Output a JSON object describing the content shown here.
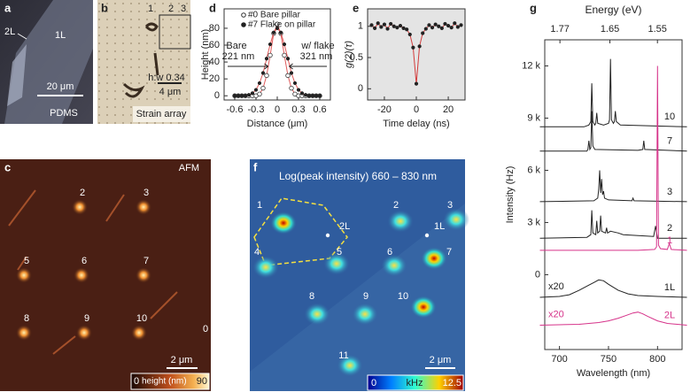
{
  "panels": {
    "a": {
      "label": "a",
      "flake_2l": "2L",
      "flake_1l": "1L",
      "scale": "20 μm",
      "substrate": "PDMS"
    },
    "b": {
      "label": "b",
      "pillars": [
        "1",
        "2",
        "3"
      ],
      "ratio": "h:w 0.34",
      "scale": "4 μm",
      "caption": "Strain array"
    },
    "c": {
      "label": "c",
      "tag": "AFM",
      "sites": [
        "2",
        "3",
        "5",
        "6",
        "7",
        "8",
        "9",
        "10",
        "0"
      ],
      "scale": "2 μm",
      "colorbar": [
        "0",
        "height (nm)",
        "90"
      ]
    },
    "f": {
      "label": "f",
      "title": "Log(peak intensity) 660 – 830 nm",
      "sites": [
        "1",
        "2",
        "3",
        "4",
        "5",
        "6",
        "7",
        "8",
        "9",
        "10",
        "11"
      ],
      "layers": [
        "2L",
        "1L"
      ],
      "scale": "2 μm",
      "colorbar": [
        "0",
        "kHz",
        "12.5"
      ]
    }
  },
  "chart_data": [
    {
      "type": "scatter",
      "label": "d",
      "xlabel": "Distance (μm)",
      "ylabel": "Height (nm)",
      "xlim": [
        -0.75,
        0.75
      ],
      "ylim": [
        -5,
        103
      ],
      "xticks": [
        -0.6,
        -0.3,
        0,
        0.3,
        0.6
      ],
      "yticks": [
        0,
        20,
        40,
        60,
        80
      ],
      "legend": "upper center",
      "annotations": [
        "Bare",
        "221 nm",
        "w/ flake",
        "321 nm"
      ],
      "x": [
        -0.6,
        -0.55,
        -0.5,
        -0.45,
        -0.4,
        -0.35,
        -0.3,
        -0.25,
        -0.2,
        -0.15,
        -0.1,
        -0.05,
        0,
        0.05,
        0.1,
        0.15,
        0.2,
        0.25,
        0.3,
        0.35,
        0.4,
        0.45,
        0.5,
        0.55,
        0.6
      ],
      "series": [
        {
          "name": "#0 Bare pillar",
          "marker": "open",
          "color": "#333333",
          "line_color": "#e05a5a",
          "values": [
            0,
            0,
            0,
            0,
            0,
            0,
            0,
            2,
            9,
            24,
            48,
            74,
            85,
            74,
            48,
            24,
            9,
            2,
            0,
            0,
            0,
            0,
            0,
            0,
            0
          ]
        },
        {
          "name": "#7 Flake on pillar",
          "marker": "filled",
          "color": "#222222",
          "line_color": "#e05a5a",
          "values": [
            0,
            0,
            0,
            0,
            1,
            3,
            7,
            15,
            27,
            44,
            61,
            75,
            80,
            75,
            61,
            44,
            27,
            15,
            7,
            3,
            1,
            0,
            0,
            0,
            0
          ]
        }
      ]
    },
    {
      "type": "scatter",
      "label": "e",
      "xlabel": "Time delay (ns)",
      "ylabel": "g(2)(τ)",
      "xlim": [
        -30.5,
        30.5
      ],
      "ylim": [
        -0.18,
        1.28
      ],
      "xticks": [
        -20,
        0,
        20
      ],
      "yticks": [
        0,
        0.5,
        1
      ],
      "background": "#e4e4e4",
      "x": [
        -28,
        -26,
        -24,
        -22,
        -20,
        -18,
        -16,
        -14,
        -12,
        -10,
        -8,
        -6,
        -4,
        -2,
        0,
        2,
        4,
        6,
        8,
        10,
        12,
        14,
        16,
        18,
        20,
        22,
        24,
        26,
        28
      ],
      "series": [
        {
          "marker": "filled",
          "color": "#222222",
          "line_color": "#d23c3c",
          "values": [
            1.02,
            0.97,
            1.05,
            0.99,
            1.03,
            0.96,
            1.04,
            1.0,
            0.98,
            1.01,
            0.97,
            0.95,
            0.87,
            0.66,
            0.08,
            0.68,
            0.89,
            0.96,
            1.02,
            0.98,
            1.03,
            1.0,
            0.97,
            1.04,
            1.01,
            0.98,
            1.05,
            0.99,
            1.02
          ]
        }
      ]
    },
    {
      "type": "line",
      "label": "g",
      "xlabel": "Wavelength (nm)",
      "ylabel": "Intensity (Hz)",
      "x2label": "Energy (eV)",
      "xlim": [
        685,
        825
      ],
      "ylim": [
        -4300,
        13500
      ],
      "xticks": [
        700,
        750,
        800
      ],
      "x2ticks": [
        1.77,
        1.65,
        1.55
      ],
      "yticks": [
        0,
        {
          "value": 3000,
          "label": "3 k"
        },
        {
          "value": 6000,
          "label": "6 k"
        },
        {
          "value": 9000,
          "label": "9 k"
        },
        {
          "value": 12000,
          "label": "12 k"
        }
      ],
      "series": [
        {
          "name": "10",
          "color": "#222222",
          "x": [
            680,
            725,
            730,
            732,
            733,
            734,
            736,
            737,
            738,
            739,
            745,
            750,
            751,
            752,
            753,
            755,
            756,
            757,
            758,
            762,
            830
          ],
          "values": [
            8500,
            8500,
            8600,
            8800,
            11000,
            8800,
            8600,
            8700,
            9300,
            8700,
            8600,
            8700,
            8900,
            12400,
            8900,
            8700,
            8800,
            9400,
            8800,
            8600,
            8500
          ]
        },
        {
          "name": "7",
          "color": "#222222",
          "x": [
            680,
            728,
            729,
            730,
            731,
            732,
            733,
            734,
            736,
            780,
            785,
            786,
            787,
            830
          ],
          "values": [
            7100,
            7100,
            7200,
            7700,
            7200,
            7300,
            9400,
            7400,
            7200,
            7150,
            7200,
            7700,
            7200,
            7100
          ]
        },
        {
          "name": "3",
          "color": "#222222",
          "x": [
            680,
            735,
            739,
            740,
            741,
            742,
            743,
            744,
            745,
            746,
            750,
            774,
            775,
            776,
            830
          ],
          "values": [
            4200,
            4250,
            4400,
            4900,
            6000,
            4700,
            5500,
            4600,
            4800,
            4400,
            4300,
            4250,
            4400,
            4250,
            4200
          ]
        },
        {
          "name": "2",
          "color": "#222222",
          "x": [
            680,
            728,
            732,
            733,
            734,
            737,
            738,
            739,
            741,
            742,
            743,
            747,
            748,
            749,
            752,
            760,
            765,
            796,
            798,
            800,
            830
          ],
          "values": [
            2100,
            2150,
            2300,
            3700,
            2400,
            2300,
            3100,
            2400,
            2500,
            3400,
            2500,
            2400,
            2700,
            2400,
            2500,
            2400,
            2300,
            2200,
            2800,
            2100,
            2100
          ]
        },
        {
          "name": "1",
          "color": "#d6338a",
          "x": [
            680,
            780,
            797,
            799,
            800,
            801,
            803,
            810,
            812,
            814,
            830
          ],
          "values": [
            1400,
            1400,
            1450,
            1600,
            12000,
            1700,
            1500,
            1450,
            1800,
            1450,
            1400
          ]
        },
        {
          "name": "1L",
          "color": "#222222",
          "scale_label": "x20",
          "x": [
            680,
            700,
            710,
            720,
            730,
            735,
            740,
            745,
            750,
            760,
            770,
            780,
            800,
            830
          ],
          "values": [
            -1300,
            -1250,
            -1150,
            -900,
            -600,
            -450,
            -300,
            -350,
            -550,
            -900,
            -1100,
            -1200,
            -1250,
            -1300
          ]
        },
        {
          "name": "2L",
          "color": "#d6338a",
          "scale_label": "x20",
          "x": [
            680,
            720,
            740,
            750,
            760,
            770,
            775,
            780,
            785,
            790,
            800,
            810,
            830
          ],
          "values": [
            -2900,
            -2850,
            -2750,
            -2650,
            -2500,
            -2300,
            -2200,
            -2150,
            -2250,
            -2400,
            -2650,
            -2800,
            -2900
          ]
        }
      ]
    }
  ]
}
